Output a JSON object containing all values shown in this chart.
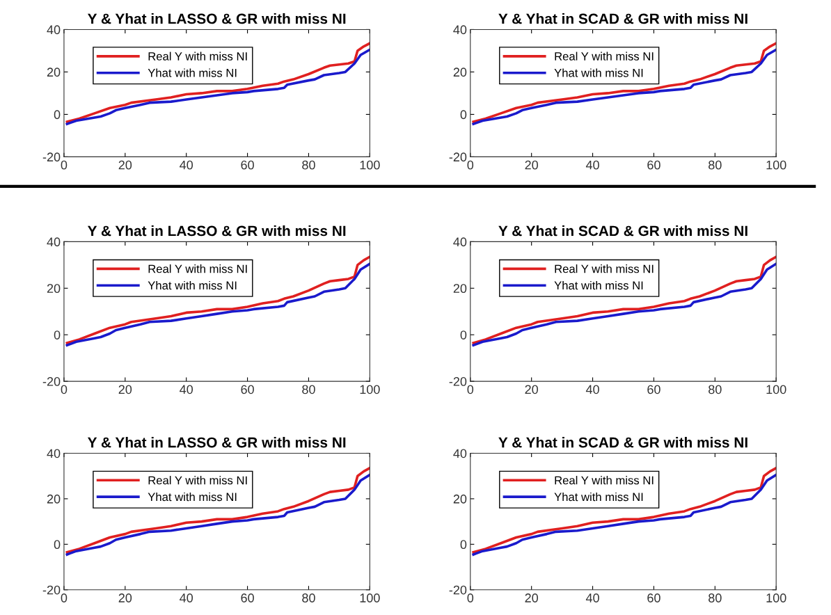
{
  "chart_data": [
    {
      "type": "line",
      "title": "Y & Yhat in LASSO & GR with miss NI",
      "xlim": [
        0,
        100
      ],
      "ylim": [
        -20,
        40
      ],
      "xticks": [
        0,
        20,
        40,
        60,
        80,
        100
      ],
      "yticks": [
        -20,
        0,
        20,
        40
      ],
      "legend": "top left",
      "grid": false,
      "series": [
        {
          "name": "Real Y with miss NI",
          "color": "#e02020",
          "x": [
            1,
            5,
            10,
            15,
            20,
            22,
            30,
            35,
            40,
            45,
            50,
            55,
            60,
            65,
            70,
            72,
            75,
            80,
            85,
            87,
            90,
            93,
            95,
            96,
            98,
            100
          ],
          "values": [
            -3.5,
            -2,
            0.5,
            3,
            4.5,
            5.5,
            7,
            8,
            9.5,
            10,
            11,
            11,
            12,
            13.5,
            14.5,
            15.5,
            16.5,
            19,
            22,
            23,
            23.5,
            24,
            25,
            30,
            32,
            33.5
          ]
        },
        {
          "name": "Yhat with miss NI",
          "color": "#1a1acc",
          "x": [
            1,
            2,
            4,
            10,
            12,
            15,
            17,
            20,
            25,
            28,
            35,
            40,
            45,
            50,
            55,
            60,
            62,
            70,
            72,
            73,
            80,
            82,
            85,
            90,
            92,
            95,
            97,
            100
          ],
          "values": [
            -4.5,
            -4,
            -3,
            -1.5,
            -1,
            0.5,
            2,
            3,
            4.5,
            5.5,
            6,
            7,
            8,
            9,
            10,
            10.5,
            11,
            12,
            12.5,
            14,
            16,
            16.5,
            18.5,
            19.5,
            20,
            24,
            28,
            30.5
          ]
        }
      ]
    },
    {
      "type": "line",
      "title": "Y & Yhat in SCAD & GR with miss NI",
      "xlim": [
        0,
        100
      ],
      "ylim": [
        -20,
        40
      ],
      "xticks": [
        0,
        20,
        40,
        60,
        80,
        100
      ],
      "yticks": [
        -20,
        0,
        20,
        40
      ],
      "legend": "top left",
      "grid": false,
      "series": [
        {
          "name": "Real Y with miss NI",
          "color": "#e02020",
          "x": [
            1,
            5,
            10,
            15,
            20,
            22,
            30,
            35,
            40,
            45,
            50,
            55,
            60,
            65,
            70,
            72,
            75,
            80,
            85,
            87,
            90,
            93,
            95,
            96,
            98,
            100
          ],
          "values": [
            -3.5,
            -2,
            0.5,
            3,
            4.5,
            5.5,
            7,
            8,
            9.5,
            10,
            11,
            11,
            12,
            13.5,
            14.5,
            15.5,
            16.5,
            19,
            22,
            23,
            23.5,
            24,
            25,
            30,
            32,
            33.5
          ]
        },
        {
          "name": "Yhat with miss NI",
          "color": "#1a1acc",
          "x": [
            1,
            2,
            4,
            10,
            12,
            15,
            17,
            20,
            25,
            28,
            35,
            40,
            45,
            50,
            55,
            60,
            62,
            70,
            72,
            73,
            80,
            82,
            85,
            90,
            92,
            95,
            97,
            100
          ],
          "values": [
            -4.5,
            -4,
            -3,
            -1.5,
            -1,
            0.5,
            2,
            3,
            4.5,
            5.5,
            6,
            7,
            8,
            9,
            10,
            10.5,
            11,
            12,
            12.5,
            14,
            16,
            16.5,
            18.5,
            19.5,
            20,
            24,
            28,
            30.5
          ]
        }
      ]
    },
    {
      "type": "line",
      "title": "Y & Yhat in LASSO & GR with miss NI",
      "xlim": [
        0,
        100
      ],
      "ylim": [
        -20,
        40
      ],
      "xticks": [
        0,
        20,
        40,
        60,
        80,
        100
      ],
      "yticks": [
        -20,
        0,
        20,
        40
      ],
      "legend": "top left",
      "grid": false,
      "series": [
        {
          "name": "Real Y with miss NI",
          "color": "#e02020",
          "x": [
            1,
            5,
            10,
            15,
            20,
            22,
            30,
            35,
            40,
            45,
            50,
            55,
            60,
            65,
            70,
            72,
            75,
            80,
            85,
            87,
            90,
            93,
            95,
            96,
            98,
            100
          ],
          "values": [
            -3.5,
            -2,
            0.5,
            3,
            4.5,
            5.5,
            7,
            8,
            9.5,
            10,
            11,
            11,
            12,
            13.5,
            14.5,
            15.5,
            16.5,
            19,
            22,
            23,
            23.5,
            24,
            25,
            30,
            32,
            33.5
          ]
        },
        {
          "name": "Yhat with miss NI",
          "color": "#1a1acc",
          "x": [
            1,
            2,
            4,
            10,
            12,
            15,
            17,
            20,
            25,
            28,
            35,
            40,
            45,
            50,
            55,
            60,
            62,
            70,
            72,
            73,
            80,
            82,
            85,
            90,
            92,
            95,
            97,
            100
          ],
          "values": [
            -4.5,
            -4,
            -3,
            -1.5,
            -1,
            0.5,
            2,
            3,
            4.5,
            5.5,
            6,
            7,
            8,
            9,
            10,
            10.5,
            11,
            12,
            12.5,
            14,
            16,
            16.5,
            18.5,
            19.5,
            20,
            24,
            28,
            30.5
          ]
        }
      ]
    },
    {
      "type": "line",
      "title": "Y & Yhat in SCAD & GR with miss NI",
      "xlim": [
        0,
        100
      ],
      "ylim": [
        -20,
        40
      ],
      "xticks": [
        0,
        20,
        40,
        60,
        80,
        100
      ],
      "yticks": [
        -20,
        0,
        20,
        40
      ],
      "legend": "top left",
      "grid": false,
      "series": [
        {
          "name": "Real Y with miss NI",
          "color": "#e02020",
          "x": [
            1,
            5,
            10,
            15,
            20,
            22,
            30,
            35,
            40,
            45,
            50,
            55,
            60,
            65,
            70,
            72,
            75,
            80,
            85,
            87,
            90,
            93,
            95,
            96,
            98,
            100
          ],
          "values": [
            -3.5,
            -2,
            0.5,
            3,
            4.5,
            5.5,
            7,
            8,
            9.5,
            10,
            11,
            11,
            12,
            13.5,
            14.5,
            15.5,
            16.5,
            19,
            22,
            23,
            23.5,
            24,
            25,
            30,
            32,
            33.5
          ]
        },
        {
          "name": "Yhat with miss NI",
          "color": "#1a1acc",
          "x": [
            1,
            2,
            4,
            10,
            12,
            15,
            17,
            20,
            25,
            28,
            35,
            40,
            45,
            50,
            55,
            60,
            62,
            70,
            72,
            73,
            80,
            82,
            85,
            90,
            92,
            95,
            97,
            100
          ],
          "values": [
            -4.5,
            -4,
            -3,
            -1.5,
            -1,
            0.5,
            2,
            3,
            4.5,
            5.5,
            6,
            7,
            8,
            9,
            10,
            10.5,
            11,
            12,
            12.5,
            14,
            16,
            16.5,
            18.5,
            19.5,
            20,
            24,
            28,
            30.5
          ]
        }
      ]
    },
    {
      "type": "line",
      "title": "Y & Yhat in LASSO & GR with miss NI",
      "xlim": [
        0,
        100
      ],
      "ylim": [
        -20,
        40
      ],
      "xticks": [
        0,
        20,
        40,
        60,
        80,
        100
      ],
      "yticks": [
        -20,
        0,
        20,
        40
      ],
      "legend": "top left",
      "grid": false,
      "series": [
        {
          "name": "Real Y with miss NI",
          "color": "#e02020",
          "x": [
            1,
            5,
            10,
            15,
            20,
            22,
            30,
            35,
            40,
            45,
            50,
            55,
            60,
            65,
            70,
            72,
            75,
            80,
            85,
            87,
            90,
            93,
            95,
            96,
            98,
            100
          ],
          "values": [
            -3.5,
            -2,
            0.5,
            3,
            4.5,
            5.5,
            7,
            8,
            9.5,
            10,
            11,
            11,
            12,
            13.5,
            14.5,
            15.5,
            16.5,
            19,
            22,
            23,
            23.5,
            24,
            25,
            30,
            32,
            33.5
          ]
        },
        {
          "name": "Yhat with miss NI",
          "color": "#1a1acc",
          "x": [
            1,
            2,
            4,
            10,
            12,
            15,
            17,
            20,
            25,
            28,
            35,
            40,
            45,
            50,
            55,
            60,
            62,
            70,
            72,
            73,
            80,
            82,
            85,
            90,
            92,
            95,
            97,
            100
          ],
          "values": [
            -4.5,
            -4,
            -3,
            -1.5,
            -1,
            0.5,
            2,
            3,
            4.5,
            5.5,
            6,
            7,
            8,
            9,
            10,
            10.5,
            11,
            12,
            12.5,
            14,
            16,
            16.5,
            18.5,
            19.5,
            20,
            24,
            28,
            30.5
          ]
        }
      ]
    },
    {
      "type": "line",
      "title": "Y & Yhat in SCAD & GR with miss NI",
      "xlim": [
        0,
        100
      ],
      "ylim": [
        -20,
        40
      ],
      "xticks": [
        0,
        20,
        40,
        60,
        80,
        100
      ],
      "yticks": [
        -20,
        0,
        20,
        40
      ],
      "legend": "top left",
      "grid": false,
      "series": [
        {
          "name": "Real Y with miss NI",
          "color": "#e02020",
          "x": [
            1,
            5,
            10,
            15,
            20,
            22,
            30,
            35,
            40,
            45,
            50,
            55,
            60,
            65,
            70,
            72,
            75,
            80,
            85,
            87,
            90,
            93,
            95,
            96,
            98,
            100
          ],
          "values": [
            -3.5,
            -2,
            0.5,
            3,
            4.5,
            5.5,
            7,
            8,
            9.5,
            10,
            11,
            11,
            12,
            13.5,
            14.5,
            15.5,
            16.5,
            19,
            22,
            23,
            23.5,
            24,
            25,
            30,
            32,
            33.5
          ]
        },
        {
          "name": "Yhat with miss NI",
          "color": "#1a1acc",
          "x": [
            1,
            2,
            4,
            10,
            12,
            15,
            17,
            20,
            25,
            28,
            35,
            40,
            45,
            50,
            55,
            60,
            62,
            70,
            72,
            73,
            80,
            82,
            85,
            90,
            92,
            95,
            97,
            100
          ],
          "values": [
            -4.5,
            -4,
            -3,
            -1.5,
            -1,
            0.5,
            2,
            3,
            4.5,
            5.5,
            6,
            7,
            8,
            9,
            10,
            10.5,
            11,
            12,
            12.5,
            14,
            16,
            16.5,
            18.5,
            19.5,
            20,
            24,
            28,
            30.5
          ]
        }
      ]
    }
  ]
}
